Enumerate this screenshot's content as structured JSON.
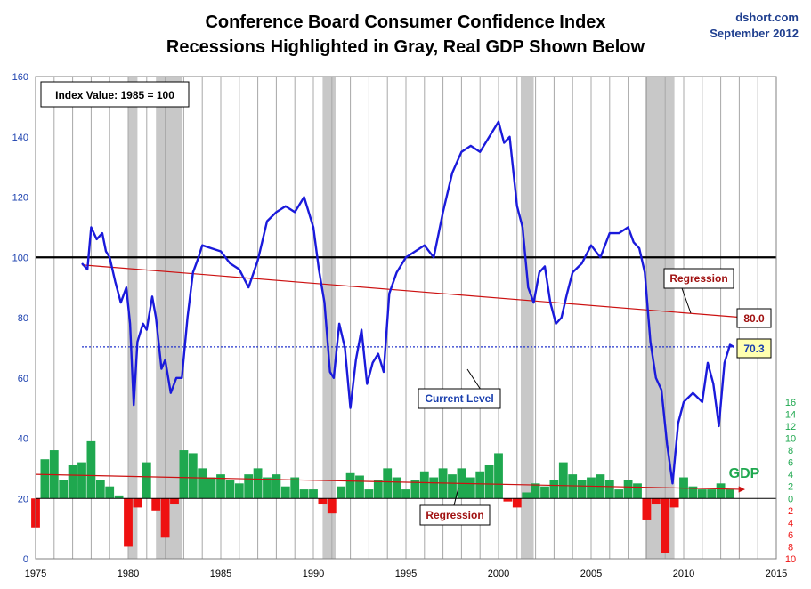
{
  "header": {
    "title_line1": "Conference Board Consumer Confidence Index",
    "title_line2": "Recessions Highlighted in Gray, Real GDP Shown Below",
    "source": "dshort.com",
    "date": "September 2012"
  },
  "annotations": {
    "index_note": "Index Value: 1985  = 100",
    "regression_top": "Regression",
    "regression_value": "80.0",
    "current_value": "70.3",
    "current_level": "Current Level",
    "gdp_label": "GDP",
    "regression_bottom": "Regression"
  },
  "colors": {
    "cci_line": "#1a1adb",
    "gdp_positive": "#1fa84f",
    "gdp_negative": "#ee1111",
    "recession_band": "#c8c8c8",
    "regression_line": "#cc1111",
    "left_axis_text": "#1a3fae",
    "gdp_axis_positive": "#1fa84f",
    "gdp_axis_negative": "#ee1111"
  },
  "chart_data": {
    "type": "line",
    "title": "Conference Board Consumer Confidence Index",
    "x_ticks": [
      "1975",
      "1980",
      "1985",
      "1990",
      "1995",
      "2000",
      "2005",
      "2010",
      "2015"
    ],
    "y_ticks_left": [
      "0",
      "20",
      "40",
      "60",
      "80",
      "100",
      "120",
      "140",
      "160"
    ],
    "y_ticks_right_positive": [
      "0",
      "2",
      "4",
      "6",
      "8",
      "10",
      "12",
      "14",
      "16"
    ],
    "y_ticks_right_negative": [
      "2",
      "4",
      "6",
      "8",
      "10"
    ],
    "xlim": [
      1975,
      2015
    ],
    "ylim": [
      0,
      160
    ],
    "gdp_ylim": [
      -10,
      16
    ],
    "reference_line": 100,
    "recessions": [
      [
        1980.0,
        1980.5
      ],
      [
        1981.5,
        1982.9
      ],
      [
        1990.5,
        1991.2
      ],
      [
        2001.2,
        2001.9
      ],
      [
        2007.9,
        2009.5
      ]
    ],
    "series": [
      {
        "name": "Consumer Confidence Index",
        "x": [
          1977.5,
          1977.8,
          1978.0,
          1978.3,
          1978.6,
          1978.8,
          1979.0,
          1979.3,
          1979.6,
          1979.9,
          1980.1,
          1980.3,
          1980.5,
          1980.8,
          1981.0,
          1981.3,
          1981.5,
          1981.8,
          1982.0,
          1982.3,
          1982.6,
          1982.9,
          1983.2,
          1983.5,
          1983.8,
          1984.0,
          1984.5,
          1985.0,
          1985.5,
          1986.0,
          1986.5,
          1987.0,
          1987.5,
          1988.0,
          1988.5,
          1989.0,
          1989.5,
          1990.0,
          1990.3,
          1990.6,
          1990.9,
          1991.1,
          1991.4,
          1991.7,
          1992.0,
          1992.3,
          1992.6,
          1992.9,
          1993.2,
          1993.5,
          1993.8,
          1994.1,
          1994.5,
          1995.0,
          1995.5,
          1996.0,
          1996.5,
          1997.0,
          1997.5,
          1998.0,
          1998.5,
          1999.0,
          1999.5,
          2000.0,
          2000.3,
          2000.6,
          2001.0,
          2001.3,
          2001.6,
          2001.9,
          2002.2,
          2002.5,
          2002.8,
          2003.1,
          2003.4,
          2003.7,
          2004.0,
          2004.5,
          2005.0,
          2005.5,
          2006.0,
          2006.5,
          2007.0,
          2007.3,
          2007.6,
          2007.9,
          2008.2,
          2008.5,
          2008.8,
          2009.1,
          2009.4,
          2009.7,
          2010.0,
          2010.5,
          2011.0,
          2011.3,
          2011.6,
          2011.9,
          2012.2,
          2012.5,
          2012.7
        ],
        "values": [
          98,
          96,
          110,
          106,
          108,
          102,
          100,
          92,
          85,
          90,
          78,
          51,
          72,
          78,
          76,
          87,
          80,
          63,
          66,
          55,
          60,
          60,
          80,
          95,
          100,
          104,
          103,
          102,
          98,
          96,
          90,
          99,
          112,
          115,
          117,
          115,
          120,
          110,
          96,
          85,
          62,
          60,
          78,
          70,
          50,
          66,
          76,
          58,
          65,
          68,
          62,
          88,
          95,
          100,
          102,
          104,
          100,
          115,
          128,
          135,
          137,
          135,
          140,
          145,
          138,
          140,
          117,
          110,
          90,
          85,
          95,
          97,
          85,
          78,
          80,
          88,
          95,
          98,
          104,
          100,
          108,
          108,
          110,
          105,
          103,
          95,
          72,
          60,
          56,
          38,
          25,
          45,
          52,
          55,
          52,
          65,
          58,
          44,
          65,
          71,
          70.3
        ]
      },
      {
        "name": "GDP",
        "x": [
          1975.0,
          1975.5,
          1976.0,
          1976.5,
          1977.0,
          1977.5,
          1978.0,
          1978.5,
          1979.0,
          1979.5,
          1980.0,
          1980.5,
          1981.0,
          1981.5,
          1982.0,
          1982.5,
          1983.0,
          1983.5,
          1984.0,
          1984.5,
          1985.0,
          1985.5,
          1986.0,
          1986.5,
          1987.0,
          1987.5,
          1988.0,
          1988.5,
          1989.0,
          1989.5,
          1990.0,
          1990.5,
          1991.0,
          1991.5,
          1992.0,
          1992.5,
          1993.0,
          1993.5,
          1994.0,
          1994.5,
          1995.0,
          1995.5,
          1996.0,
          1996.5,
          1997.0,
          1997.5,
          1998.0,
          1998.5,
          1999.0,
          1999.5,
          2000.0,
          2000.5,
          2001.0,
          2001.5,
          2002.0,
          2002.5,
          2003.0,
          2003.5,
          2004.0,
          2004.5,
          2005.0,
          2005.5,
          2006.0,
          2006.5,
          2007.0,
          2007.5,
          2008.0,
          2008.5,
          2009.0,
          2009.5,
          2010.0,
          2010.5,
          2011.0,
          2011.5,
          2012.0,
          2012.5
        ],
        "values": [
          -4.8,
          6.5,
          8.0,
          3.0,
          5.5,
          6.0,
          9.5,
          3.0,
          2.0,
          0.5,
          -8.0,
          -1.5,
          6.0,
          -2.0,
          -6.5,
          -1.0,
          8.0,
          7.5,
          5.0,
          3.5,
          4.0,
          3.0,
          2.5,
          4.0,
          5.0,
          3.5,
          4.0,
          2.0,
          3.5,
          1.5,
          1.5,
          -1.0,
          -2.5,
          2.0,
          4.2,
          3.8,
          1.5,
          3.0,
          5.0,
          3.5,
          1.5,
          3.0,
          4.5,
          3.5,
          5.0,
          4.0,
          5.0,
          3.5,
          4.5,
          5.5,
          7.5,
          -0.5,
          -1.5,
          1.0,
          2.5,
          2.0,
          3.0,
          6.0,
          4.0,
          3.0,
          3.5,
          4.0,
          3.0,
          1.5,
          3.0,
          2.5,
          -3.5,
          -1.0,
          -9.0,
          -1.5,
          3.5,
          2.0,
          1.5,
          1.5,
          2.5,
          1.5
        ]
      }
    ],
    "regressions": [
      {
        "name": "CCI regression",
        "x": [
          1977.5,
          2012.7
        ],
        "values": [
          97.5,
          80.0
        ]
      },
      {
        "name": "GDP regression",
        "x": [
          1975.0,
          2012.7
        ],
        "values": [
          4.0,
          1.5
        ]
      }
    ],
    "current_level": 70.3
  }
}
